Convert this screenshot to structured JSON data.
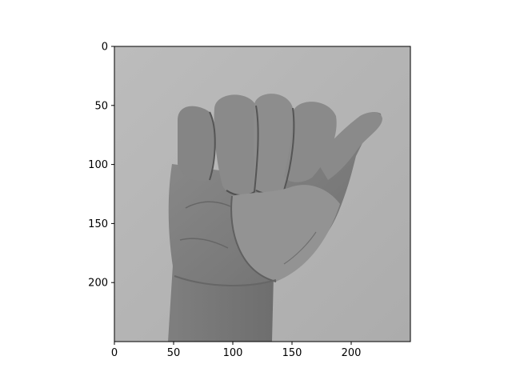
{
  "figure": {
    "image_description_icon": "grayscale-hand-fist-photo",
    "image_size": [
      250,
      250
    ],
    "xlim": [
      0,
      250
    ],
    "ylim": [
      250,
      0
    ],
    "colors": {
      "background": "#b8b8b8",
      "skin_dark": "#6f6f6f",
      "skin_mid": "#858585",
      "skin_light": "#9a9a9a",
      "shadow": "#4f4f4f",
      "frame": "#000000"
    }
  },
  "axes": {
    "x_ticks": [
      {
        "value": 0,
        "label": "0"
      },
      {
        "value": 50,
        "label": "50"
      },
      {
        "value": 100,
        "label": "100"
      },
      {
        "value": 150,
        "label": "150"
      },
      {
        "value": 200,
        "label": "200"
      }
    ],
    "y_ticks": [
      {
        "value": 0,
        "label": "0"
      },
      {
        "value": 50,
        "label": "50"
      },
      {
        "value": 100,
        "label": "100"
      },
      {
        "value": 150,
        "label": "150"
      },
      {
        "value": 200,
        "label": "200"
      }
    ]
  }
}
